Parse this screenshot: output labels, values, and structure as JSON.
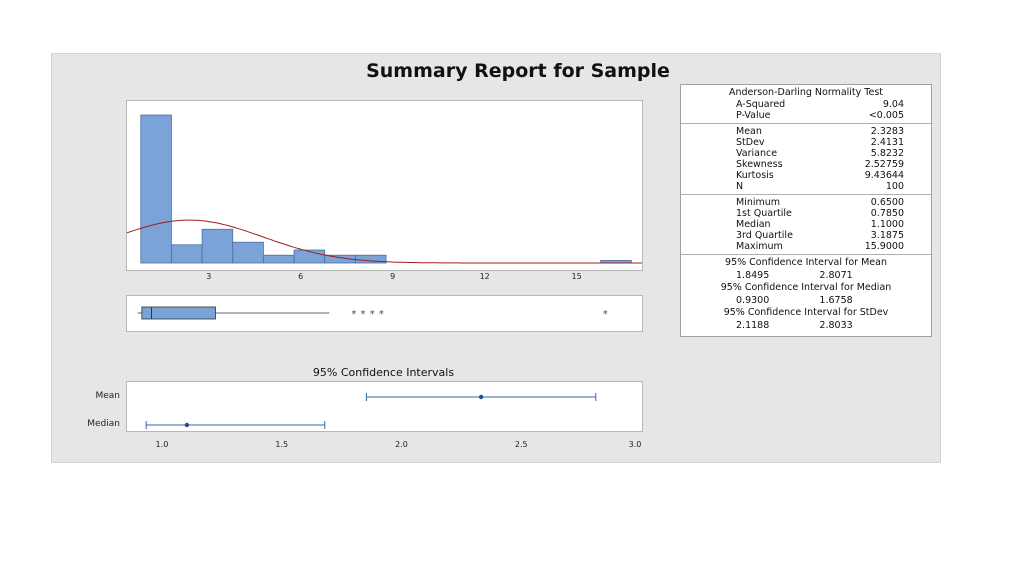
{
  "title": "Summary Report for Sample",
  "colors": {
    "bar": "#7ba3d8",
    "bar_edge": "#4a6fa5",
    "curve": "#a01c1c",
    "ci": "#2f6aa8"
  },
  "chart_data": [
    {
      "type": "bar",
      "name": "histogram",
      "bin_edges": [
        0.75,
        1.75,
        2.75,
        3.75,
        4.75,
        5.75,
        6.75,
        7.75,
        8.75,
        15.75,
        16.75
      ],
      "counts": [
        57,
        7,
        13,
        8,
        3,
        5,
        3,
        3,
        0,
        1
      ],
      "xticks": [
        "3",
        "6",
        "9",
        "12",
        "15"
      ],
      "xtick_values": [
        3,
        6,
        9,
        12,
        15
      ],
      "xlim": [
        0.3,
        17.1
      ],
      "ylim": [
        0,
        62
      ],
      "normal_curve": {
        "mean": 2.3283,
        "stdev": 2.4131
      }
    },
    {
      "type": "box",
      "name": "boxplot",
      "whisker_low": 0.65,
      "q1": 0.785,
      "median": 1.1,
      "q3": 3.1875,
      "whisker_high": 6.9,
      "outliers": [
        7.7,
        8.0,
        8.3,
        8.6,
        15.9
      ],
      "xlim": [
        0.3,
        17.1
      ]
    },
    {
      "type": "scatter",
      "name": "confidence intervals",
      "title": "95% Confidence Intervals",
      "series": [
        {
          "name": "Mean",
          "estimate": 2.3283,
          "low": 1.8495,
          "high": 2.8071
        },
        {
          "name": "Median",
          "estimate": 1.1,
          "low": 0.93,
          "high": 1.6758
        }
      ],
      "xticks": [
        "1.0",
        "1.5",
        "2.0",
        "2.5",
        "3.0"
      ],
      "xtick_values": [
        1.0,
        1.5,
        2.0,
        2.5,
        3.0
      ],
      "xlim": [
        0.85,
        3.0
      ]
    }
  ],
  "stats": {
    "ad_title": "Anderson-Darling Normality Test",
    "ad": [
      [
        "A-Squared",
        "9.04"
      ],
      [
        "P-Value",
        "<0.005"
      ]
    ],
    "moments": [
      [
        "Mean",
        "2.3283"
      ],
      [
        "StDev",
        "2.4131"
      ],
      [
        "Variance",
        "5.8232"
      ],
      [
        "Skewness",
        "2.52759"
      ],
      [
        "Kurtosis",
        "9.43644"
      ],
      [
        "N",
        "100"
      ]
    ],
    "quantiles": [
      [
        "Minimum",
        "0.6500"
      ],
      [
        "1st Quartile",
        "0.7850"
      ],
      [
        "Median",
        "1.1000"
      ],
      [
        "3rd Quartile",
        "3.1875"
      ],
      [
        "Maximum",
        "15.9000"
      ]
    ],
    "ci_mean_title": "95% Confidence Interval for Mean",
    "ci_mean": [
      "1.8495",
      "2.8071"
    ],
    "ci_median_title": "95% Confidence Interval for Median",
    "ci_median": [
      "0.9300",
      "1.6758"
    ],
    "ci_stdev_title": "95% Confidence Interval for StDev",
    "ci_stdev": [
      "2.1188",
      "2.8033"
    ]
  }
}
